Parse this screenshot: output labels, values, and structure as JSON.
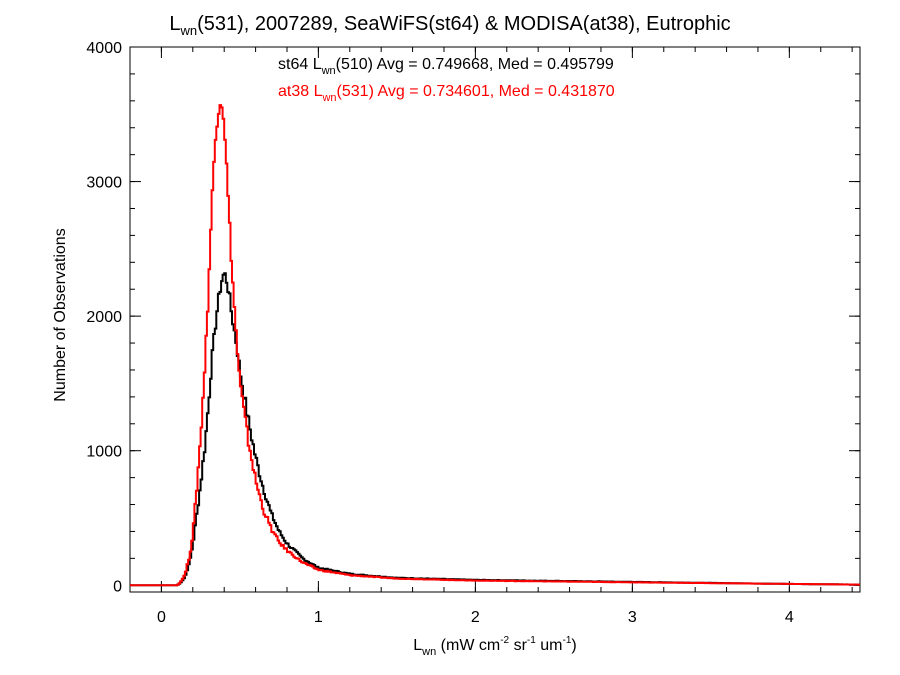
{
  "chart_data": {
    "type": "line",
    "title": {
      "main": "L",
      "sub": "wn",
      "rest": "(531), 2007289, SeaWiFS(st64) & MODISA(at38), Eutrophic"
    },
    "xlabel": {
      "main": "L",
      "sub": "wn",
      "p1": " (mW cm",
      "sup1": "-2",
      "p2": " sr",
      "sup2": "-1",
      "p3": " um",
      "sup3": "-1",
      "p4": ")"
    },
    "ylabel": "Number of Observations",
    "xlim": [
      -0.2,
      4.45
    ],
    "ylim": [
      -50,
      4000
    ],
    "x_ticks": [
      0,
      1,
      2,
      3,
      4
    ],
    "x_tick_labels": [
      "0",
      "1",
      "2",
      "3",
      "4"
    ],
    "y_ticks": [
      0,
      1000,
      2000,
      3000,
      4000
    ],
    "y_tick_labels": [
      "0",
      "1000",
      "2000",
      "3000",
      "4000"
    ],
    "grid": false,
    "legend_position": "top-center",
    "series": [
      {
        "legend": {
          "pre": "st64 L",
          "sub": "wn",
          "post": "(510) Avg = 0.749668, Med = 0.495799"
        },
        "color": "#000000",
        "x": [
          -0.2,
          0.1,
          0.12,
          0.15,
          0.18,
          0.2,
          0.22,
          0.25,
          0.28,
          0.3,
          0.32,
          0.35,
          0.38,
          0.4,
          0.42,
          0.45,
          0.48,
          0.5,
          0.55,
          0.6,
          0.65,
          0.7,
          0.75,
          0.8,
          0.9,
          1.0,
          1.2,
          1.5,
          2.0,
          3.0,
          4.0,
          4.45
        ],
        "y": [
          0,
          0,
          15,
          60,
          170,
          300,
          480,
          750,
          1070,
          1350,
          1650,
          2000,
          2250,
          2320,
          2250,
          2000,
          1780,
          1600,
          1250,
          950,
          720,
          530,
          400,
          310,
          200,
          130,
          85,
          55,
          40,
          25,
          10,
          5
        ]
      },
      {
        "legend": {
          "pre": "at38 L",
          "sub": "wn",
          "post": "(531) Avg = 0.734601, Med = 0.431870"
        },
        "color": "#ff0000",
        "x": [
          -0.2,
          0.1,
          0.12,
          0.15,
          0.18,
          0.2,
          0.22,
          0.25,
          0.28,
          0.3,
          0.32,
          0.34,
          0.36,
          0.38,
          0.4,
          0.42,
          0.44,
          0.46,
          0.48,
          0.5,
          0.55,
          0.6,
          0.65,
          0.7,
          0.75,
          0.8,
          0.9,
          1.0,
          1.2,
          1.5,
          2.0,
          3.0,
          4.0,
          4.45
        ],
        "y": [
          0,
          0,
          20,
          80,
          220,
          380,
          650,
          1100,
          1700,
          2200,
          2800,
          3250,
          3520,
          3620,
          3450,
          3000,
          2550,
          2150,
          1800,
          1500,
          1100,
          780,
          560,
          420,
          320,
          260,
          170,
          115,
          75,
          50,
          35,
          22,
          10,
          5
        ]
      }
    ]
  }
}
